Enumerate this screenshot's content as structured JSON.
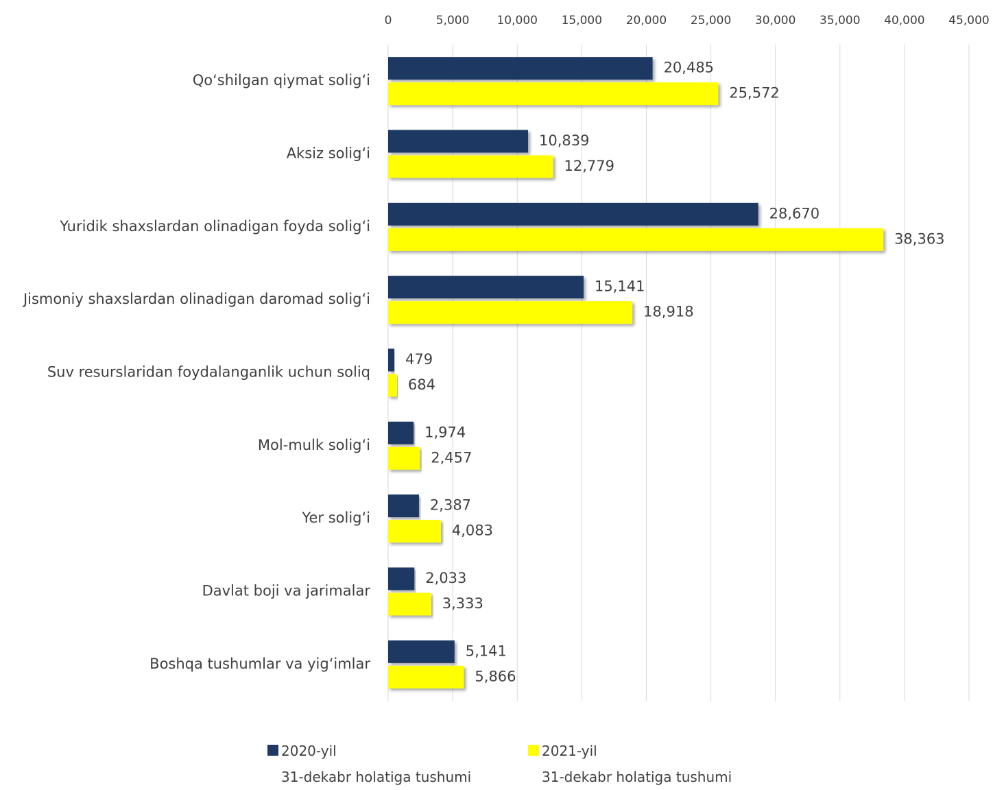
{
  "chart_data": {
    "type": "hbar",
    "categories": [
      "Qo‘shilgan qiymat solig‘i",
      "Aksiz solig‘i",
      "Yuridik shaxslardan olinadigan foyda solig‘i",
      "Jismoniy shaxslardan olinadigan daromad solig‘i",
      "Suv resurslaridan foydalanganlik uchun soliq",
      "Mol-mulk solig‘i",
      "Yer solig‘i",
      "Davlat boji va jarimalar",
      "Boshqa tushumlar va yig‘imlar"
    ],
    "series": [
      {
        "name": "2020-yil\n31-dekabr holatiga tushumi",
        "color": "#1f3864",
        "values": [
          20485,
          10839,
          28670,
          15141,
          479,
          1974,
          2387,
          2033,
          5141
        ],
        "value_labels": [
          "20,485",
          "10,839",
          "28,670",
          "15,141",
          "479",
          "1,974",
          "2,387",
          "2,033",
          "5,141"
        ]
      },
      {
        "name": "2021-yil\n31-dekabr holatiga tushumi",
        "color": "#ffff00",
        "values": [
          25572,
          12779,
          38363,
          18918,
          684,
          2457,
          4083,
          3333,
          5866
        ],
        "value_labels": [
          "25,572",
          "12,779",
          "38,363",
          "18,918",
          "684",
          "2,457",
          "4,083",
          "3,333",
          "5,866"
        ]
      }
    ],
    "xlim": [
      0,
      45000
    ],
    "xticks": [
      0,
      {
        "value": 5000,
        "label": "5,000"
      },
      {
        "value": 10000,
        "label": "10,000"
      },
      {
        "value": 15000,
        "label": "15,000"
      },
      {
        "value": 20000,
        "label": "20,000"
      },
      {
        "value": 25000,
        "label": "25,000"
      },
      {
        "value": 30000,
        "label": "30,000"
      },
      {
        "value": 35000,
        "label": "35,000"
      },
      {
        "value": 40000,
        "label": "40,000"
      },
      {
        "value": 45000,
        "label": "45,000"
      }
    ],
    "grid": true,
    "legend": "bottom"
  }
}
